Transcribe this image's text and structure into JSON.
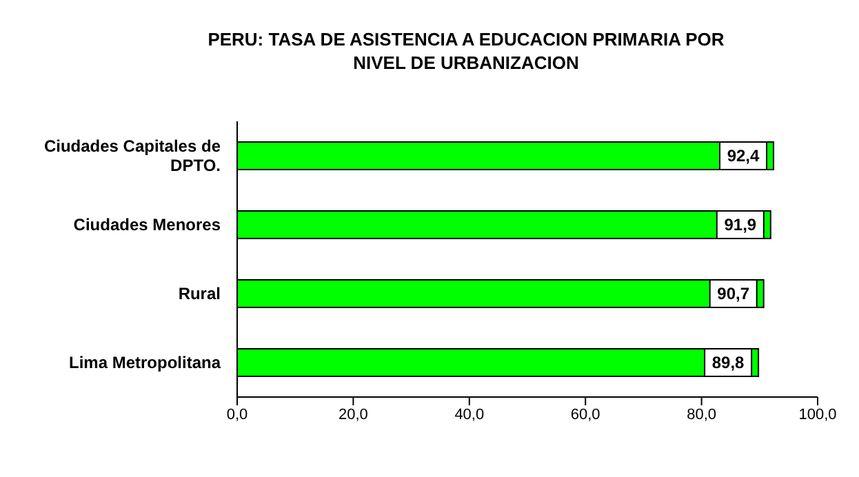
{
  "chart_data": {
    "type": "bar",
    "orientation": "horizontal",
    "title": "PERU: TASA DE ASISTENCIA A EDUCACION PRIMARIA POR NIVEL DE URBANIZACION",
    "categories": [
      "Ciudades Capitales de DPTO.",
      "Ciudades Menores",
      "Rural",
      "Lima Metropolitana"
    ],
    "values": [
      92.4,
      91.9,
      90.7,
      89.8
    ],
    "value_labels": [
      "92,4",
      "91,9",
      "90,7",
      "89,8"
    ],
    "color": "#00ff00",
    "xlim": [
      0,
      100
    ],
    "xticks": [
      {
        "value": 0,
        "label": "0,0"
      },
      {
        "value": 20,
        "label": "20,0"
      },
      {
        "value": 40,
        "label": "40,0"
      },
      {
        "value": 60,
        "label": "60,0"
      },
      {
        "value": 80,
        "label": "80,0"
      },
      {
        "value": 100,
        "label": "100,0"
      }
    ],
    "grid": false,
    "legend": false
  }
}
